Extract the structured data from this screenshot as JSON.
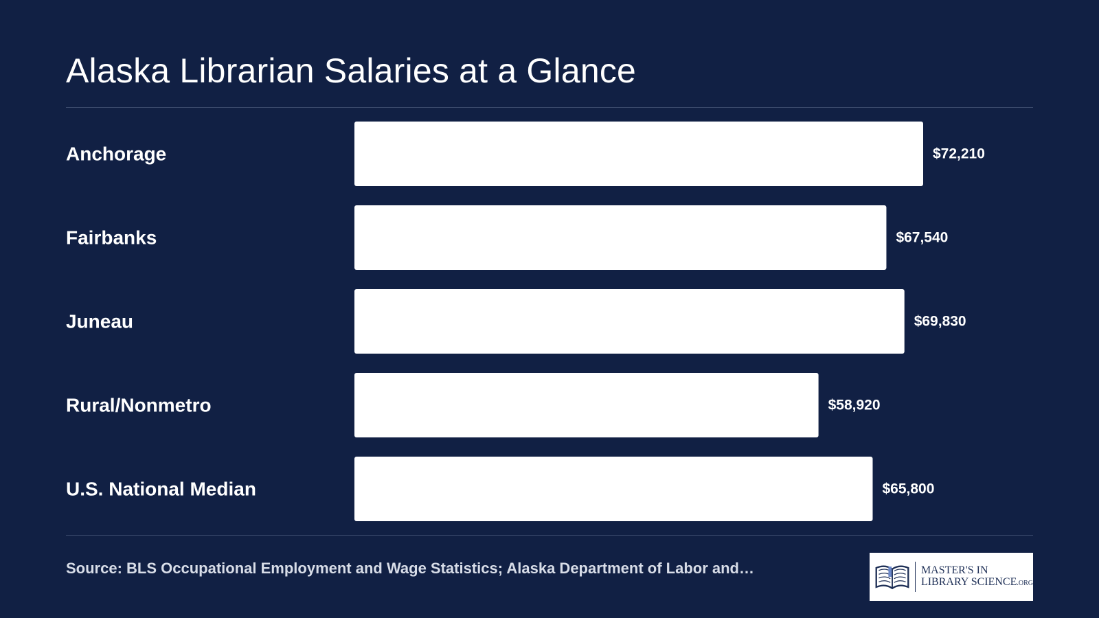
{
  "chart_data": {
    "type": "bar",
    "orientation": "horizontal",
    "title": "Alaska Librarian Salaries at a Glance",
    "categories": [
      "Anchorage",
      "Fairbanks",
      "Juneau",
      "Rural/Nonmetro",
      "U.S. National Median"
    ],
    "values": [
      72210,
      67540,
      69830,
      58920,
      65800
    ],
    "value_labels": [
      "$72,210",
      "$67,540",
      "$69,830",
      "$58,920",
      "$65,800"
    ],
    "xlim": [
      0,
      72210
    ],
    "grid": false,
    "bar_color": "#ffffff",
    "background_color": "#112044"
  },
  "source": "Source: BLS Occupational Employment and Wage Statistics; Alaska Department of Labor and…",
  "logo": {
    "line1": "MASTER'S IN",
    "line2": "LIBRARY SCIENCE",
    "suffix": ".ORG",
    "icon": "open-book-icon"
  }
}
